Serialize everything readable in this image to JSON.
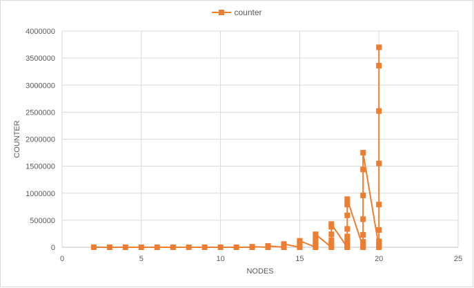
{
  "chart_data": {
    "type": "scatter",
    "xlabel": "NODES",
    "ylabel": "COUNTER",
    "xlim": [
      0,
      25
    ],
    "ylim": [
      0,
      4000000
    ],
    "x_ticks": [
      "0",
      "5",
      "10",
      "15",
      "20",
      "25"
    ],
    "y_ticks": [
      "0",
      "500000",
      "1000000",
      "1500000",
      "2000000",
      "2500000",
      "3000000",
      "3500000",
      "4000000"
    ],
    "grid": true,
    "legend_position": "top",
    "series": [
      {
        "name": "counter",
        "color": "#ed7d31",
        "marker": "square",
        "points": [
          [
            2,
            0
          ],
          [
            3,
            0
          ],
          [
            4,
            0
          ],
          [
            5,
            0
          ],
          [
            6,
            0
          ],
          [
            7,
            0
          ],
          [
            8,
            0
          ],
          [
            9,
            0
          ],
          [
            10,
            0
          ],
          [
            11,
            0
          ],
          [
            12,
            0
          ],
          [
            12,
            10000
          ],
          [
            13,
            0
          ],
          [
            13,
            25000
          ],
          [
            14,
            0
          ],
          [
            14,
            35000
          ],
          [
            14,
            60000
          ],
          [
            15,
            0
          ],
          [
            15,
            30000
          ],
          [
            15,
            70000
          ],
          [
            15,
            120000
          ],
          [
            16,
            0
          ],
          [
            16,
            20000
          ],
          [
            16,
            60000
          ],
          [
            16,
            110000
          ],
          [
            16,
            180000
          ],
          [
            16,
            240000
          ],
          [
            17,
            0
          ],
          [
            17,
            15000
          ],
          [
            17,
            60000
          ],
          [
            17,
            130000
          ],
          [
            17,
            240000
          ],
          [
            17,
            380000
          ],
          [
            17,
            430000
          ],
          [
            18,
            0
          ],
          [
            18,
            20000
          ],
          [
            18,
            60000
          ],
          [
            18,
            120000
          ],
          [
            18,
            200000
          ],
          [
            18,
            340000
          ],
          [
            18,
            590000
          ],
          [
            18,
            790000
          ],
          [
            18,
            890000
          ],
          [
            19,
            0
          ],
          [
            19,
            30000
          ],
          [
            19,
            100000
          ],
          [
            19,
            230000
          ],
          [
            19,
            520000
          ],
          [
            19,
            960000
          ],
          [
            19,
            1440000
          ],
          [
            19,
            1750000
          ],
          [
            20,
            0
          ],
          [
            20,
            30000
          ],
          [
            20,
            110000
          ],
          [
            20,
            320000
          ],
          [
            20,
            790000
          ],
          [
            20,
            1550000
          ],
          [
            20,
            2520000
          ],
          [
            20,
            3360000
          ],
          [
            20,
            3700000
          ]
        ]
      }
    ]
  }
}
